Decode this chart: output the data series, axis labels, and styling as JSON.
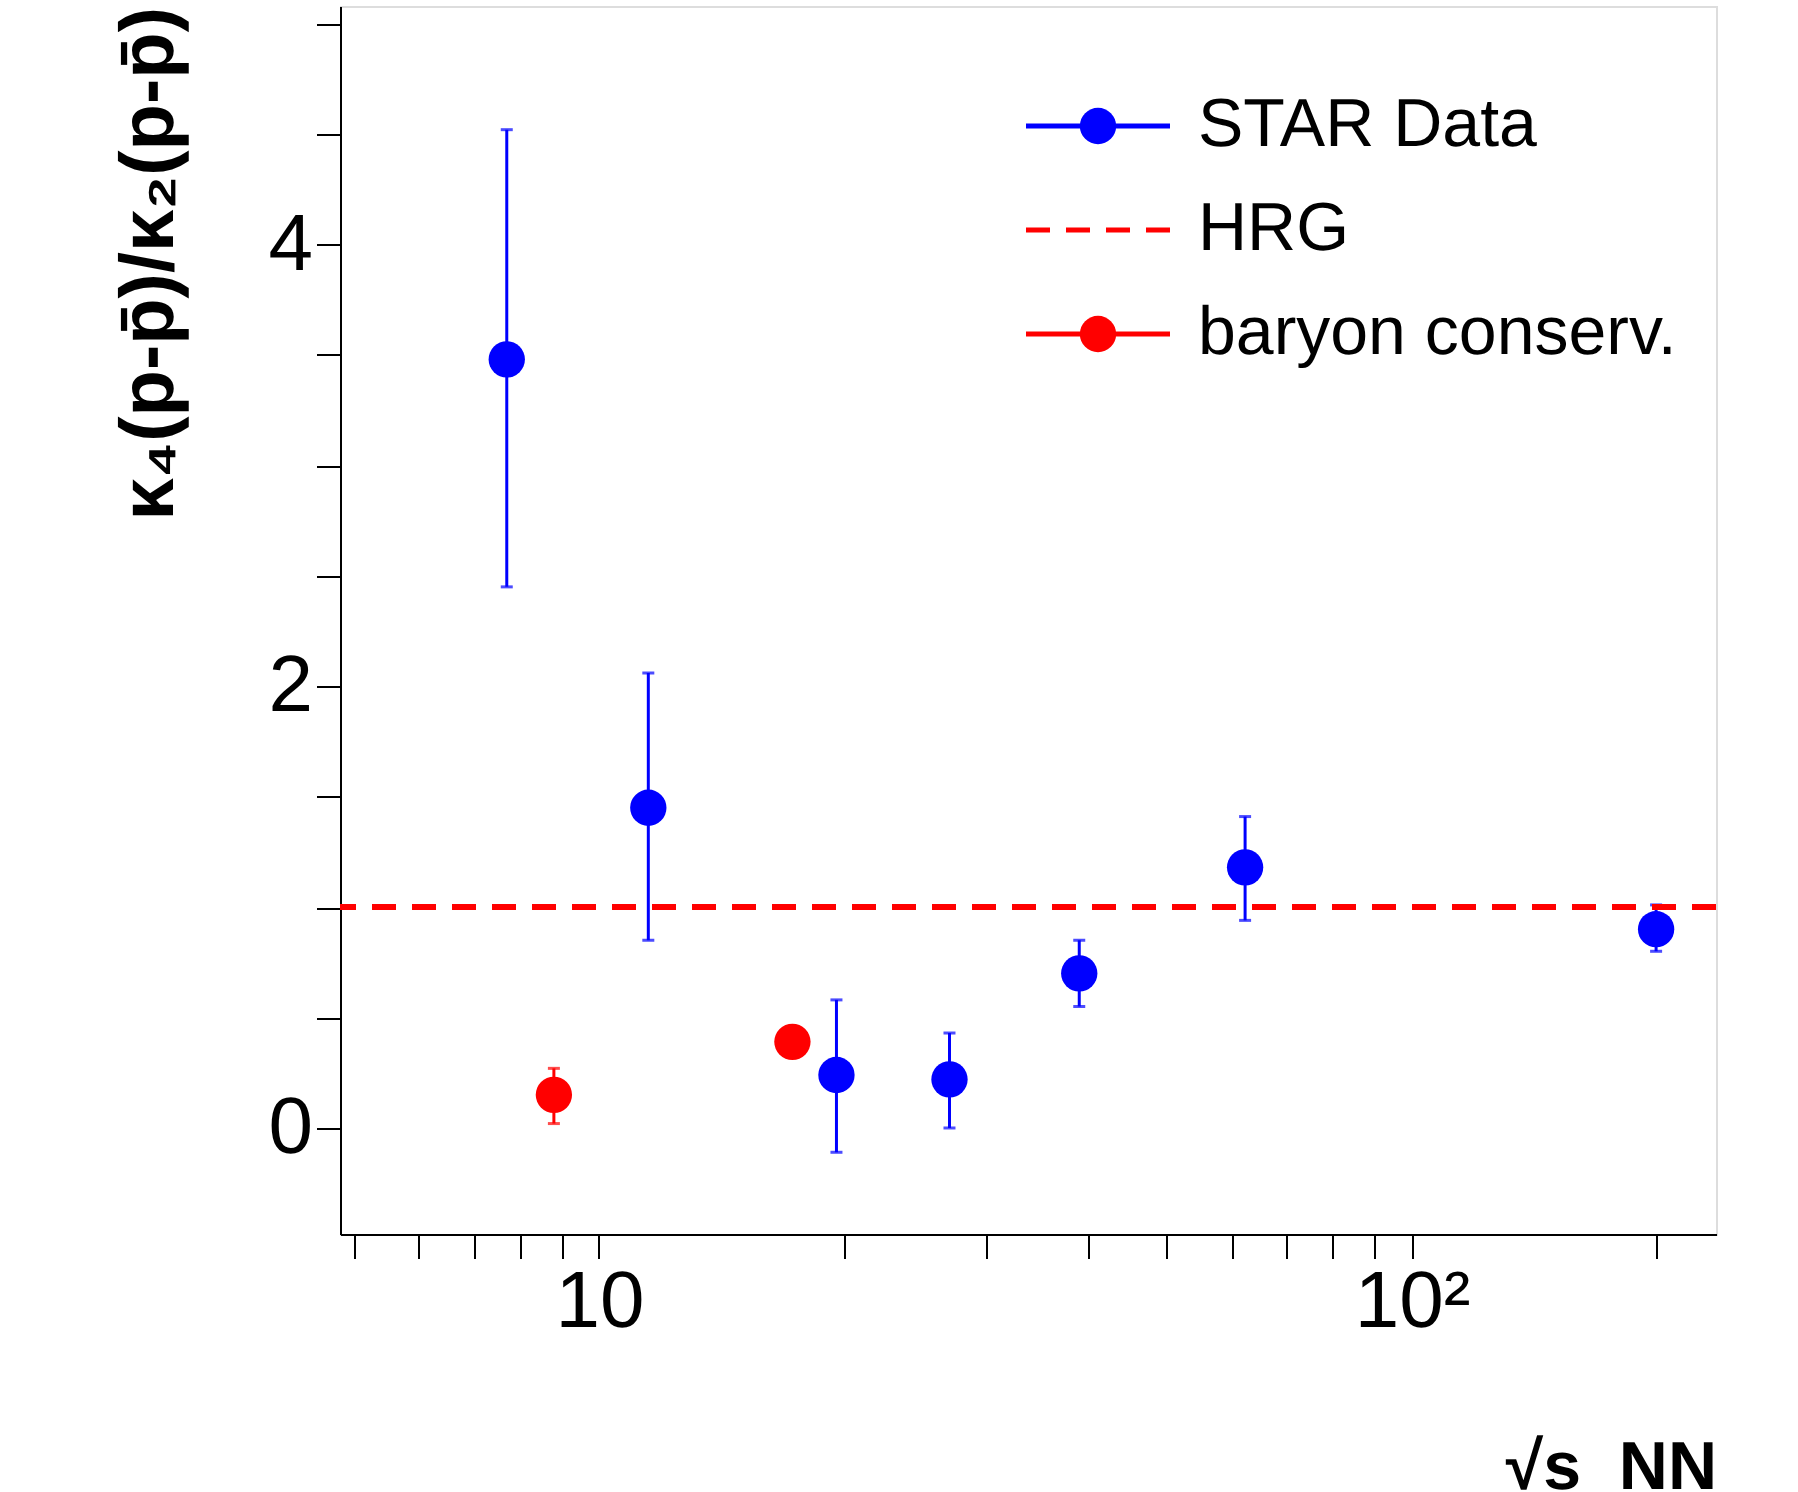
{
  "chart_data": {
    "type": "scatter",
    "xlabel": "√s_NN",
    "ylabel": "κ₄(p-p̄)/κ₂(p-p̄)",
    "log": "x",
    "xlim": [
      4.8,
      237
    ],
    "ylim": [
      -0.48,
      5.08
    ],
    "xticks": [
      {
        "value": 5,
        "label": null
      },
      {
        "value": 6,
        "label": null
      },
      {
        "value": 7,
        "label": null
      },
      {
        "value": 8,
        "label": null
      },
      {
        "value": 9,
        "label": null
      },
      10,
      {
        "value": 20,
        "label": null
      },
      {
        "value": 30,
        "label": null
      },
      {
        "value": 40,
        "label": null
      },
      {
        "value": 50,
        "label": null
      },
      {
        "value": 60,
        "label": null
      },
      {
        "value": 70,
        "label": null
      },
      {
        "value": 80,
        "label": null
      },
      {
        "value": 90,
        "label": null
      },
      {
        "value": 100,
        "label": "10²"
      },
      {
        "value": 200,
        "label": null
      }
    ],
    "yticks": [
      0,
      {
        "value": 0.5,
        "label": null
      },
      {
        "value": 1,
        "label": null
      },
      {
        "value": 1.5,
        "label": null
      },
      2,
      {
        "value": 2.5,
        "label": null
      },
      {
        "value": 3,
        "label": null
      },
      {
        "value": 3.5,
        "label": null
      },
      4,
      {
        "value": 4.5,
        "label": null
      },
      {
        "value": 5,
        "label": null
      }
    ],
    "grid": false,
    "legend": "top right",
    "marker": "circle",
    "series": [
      {
        "name": "STAR Data",
        "color": "#0000ff",
        "x": [
          7.7,
          11.5,
          19.6,
          27,
          39,
          62.4,
          200
        ],
        "values": [
          3.48,
          1.45,
          0.24,
          0.22,
          0.7,
          1.18,
          0.9
        ],
        "errors": [
          [
            2.45,
            4.52
          ],
          [
            0.85,
            2.06
          ],
          [
            -0.11,
            0.58
          ],
          [
            0.0,
            0.43
          ],
          [
            0.55,
            0.85
          ],
          [
            0.94,
            1.41
          ],
          [
            0.8,
            1.01
          ]
        ]
      },
      {
        "name": "baryon conserv.",
        "color": "#ff0000",
        "x": [
          8.8,
          17.3
        ],
        "values": [
          0.15,
          0.39
        ],
        "errors": [
          [
            0.02,
            0.27
          ],
          null
        ]
      }
    ],
    "ref_lines": [
      {
        "axis": "y",
        "value": 1,
        "label": "HRG",
        "color": "#ff0000",
        "line_style": "dashed"
      }
    ]
  }
}
